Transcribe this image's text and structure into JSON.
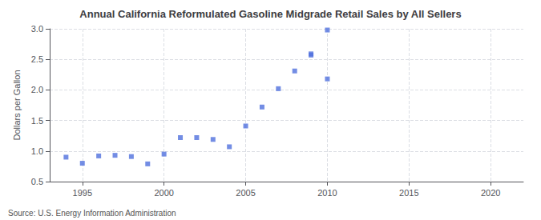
{
  "chart_data": {
    "type": "scatter",
    "title": "Annual California Reformulated Gasoline Midgrade Retail Sales by All Sellers",
    "ylabel": "Dollars per Gallon",
    "annotations": [
      "Source: U.S. Energy Information Administration"
    ],
    "x": [
      1994,
      1995,
      1996,
      1997,
      1998,
      1999,
      2000,
      2001,
      2002,
      2003,
      2004,
      2005,
      2006,
      2007,
      2008,
      2009,
      2010,
      2009,
      2010
    ],
    "values": [
      0.9,
      0.8,
      0.92,
      0.93,
      0.91,
      0.79,
      0.95,
      1.22,
      1.22,
      1.19,
      1.07,
      1.41,
      1.72,
      2.02,
      2.31,
      2.57,
      2.98,
      2.59,
      2.18
    ],
    "marker": "square",
    "xlim": [
      1993,
      2022
    ],
    "ylim": [
      0.5,
      3.0
    ],
    "xticks": [
      1995,
      2000,
      2005,
      2010,
      2015,
      2020
    ],
    "yticks": [
      0.5,
      {
        "value": 1.0,
        "label": "1.0"
      },
      1.5,
      {
        "value": 2.0,
        "label": "2.0"
      },
      2.5,
      {
        "value": 3.0,
        "label": "3.0"
      }
    ],
    "grid": true
  }
}
